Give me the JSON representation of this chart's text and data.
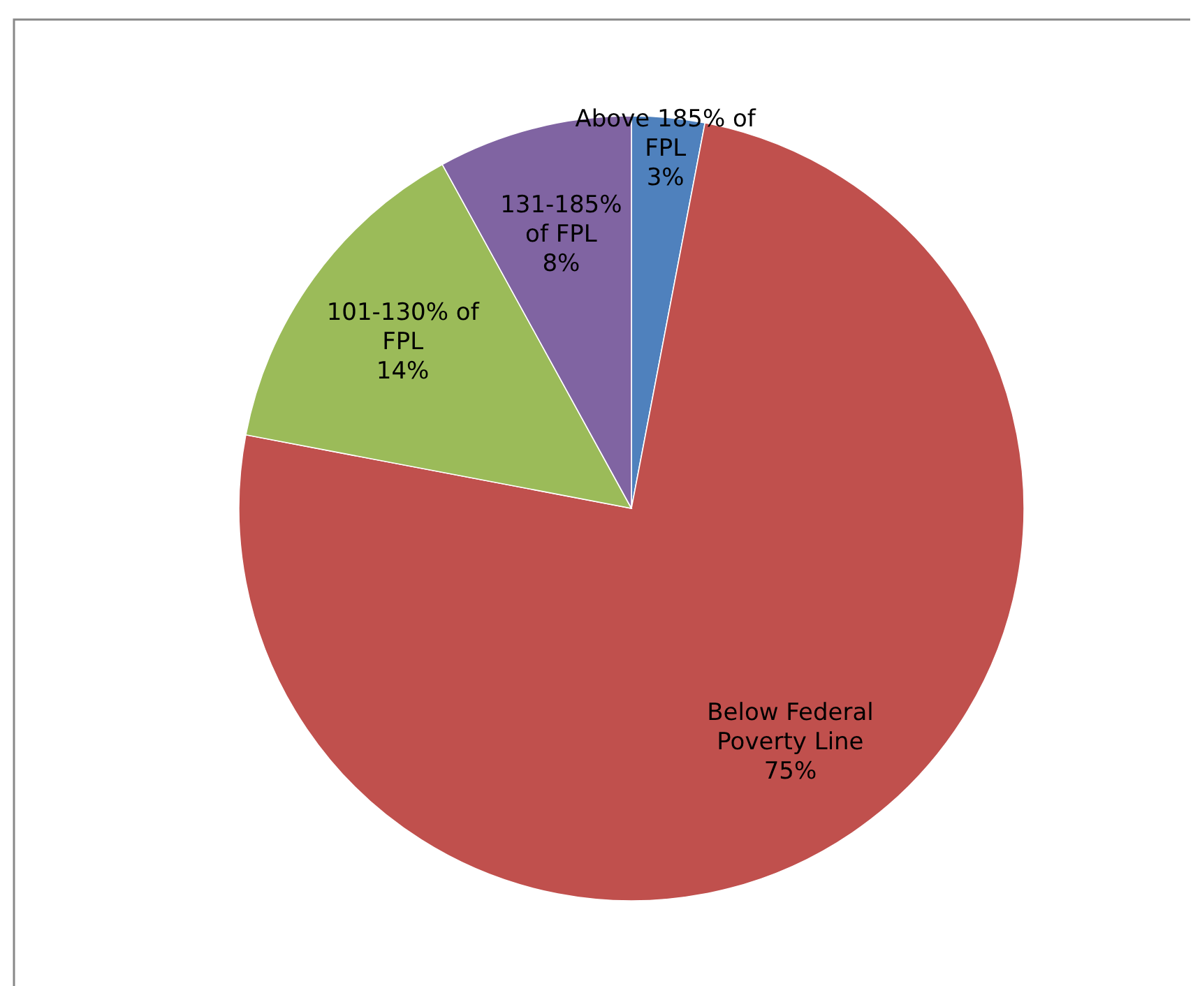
{
  "chart_data": {
    "type": "pie",
    "categories": [
      "Above 185% of FPL",
      "Below Federal Poverty Line",
      "101-130% of FPL",
      "131-185% of FPL"
    ],
    "values": [
      3,
      75,
      14,
      8
    ],
    "colors": [
      "#4f81bd",
      "#c0504d",
      "#9bbb59",
      "#8064a2"
    ],
    "value_labels": [
      "3%",
      "75%",
      "14%",
      "8%"
    ],
    "legend": false
  }
}
